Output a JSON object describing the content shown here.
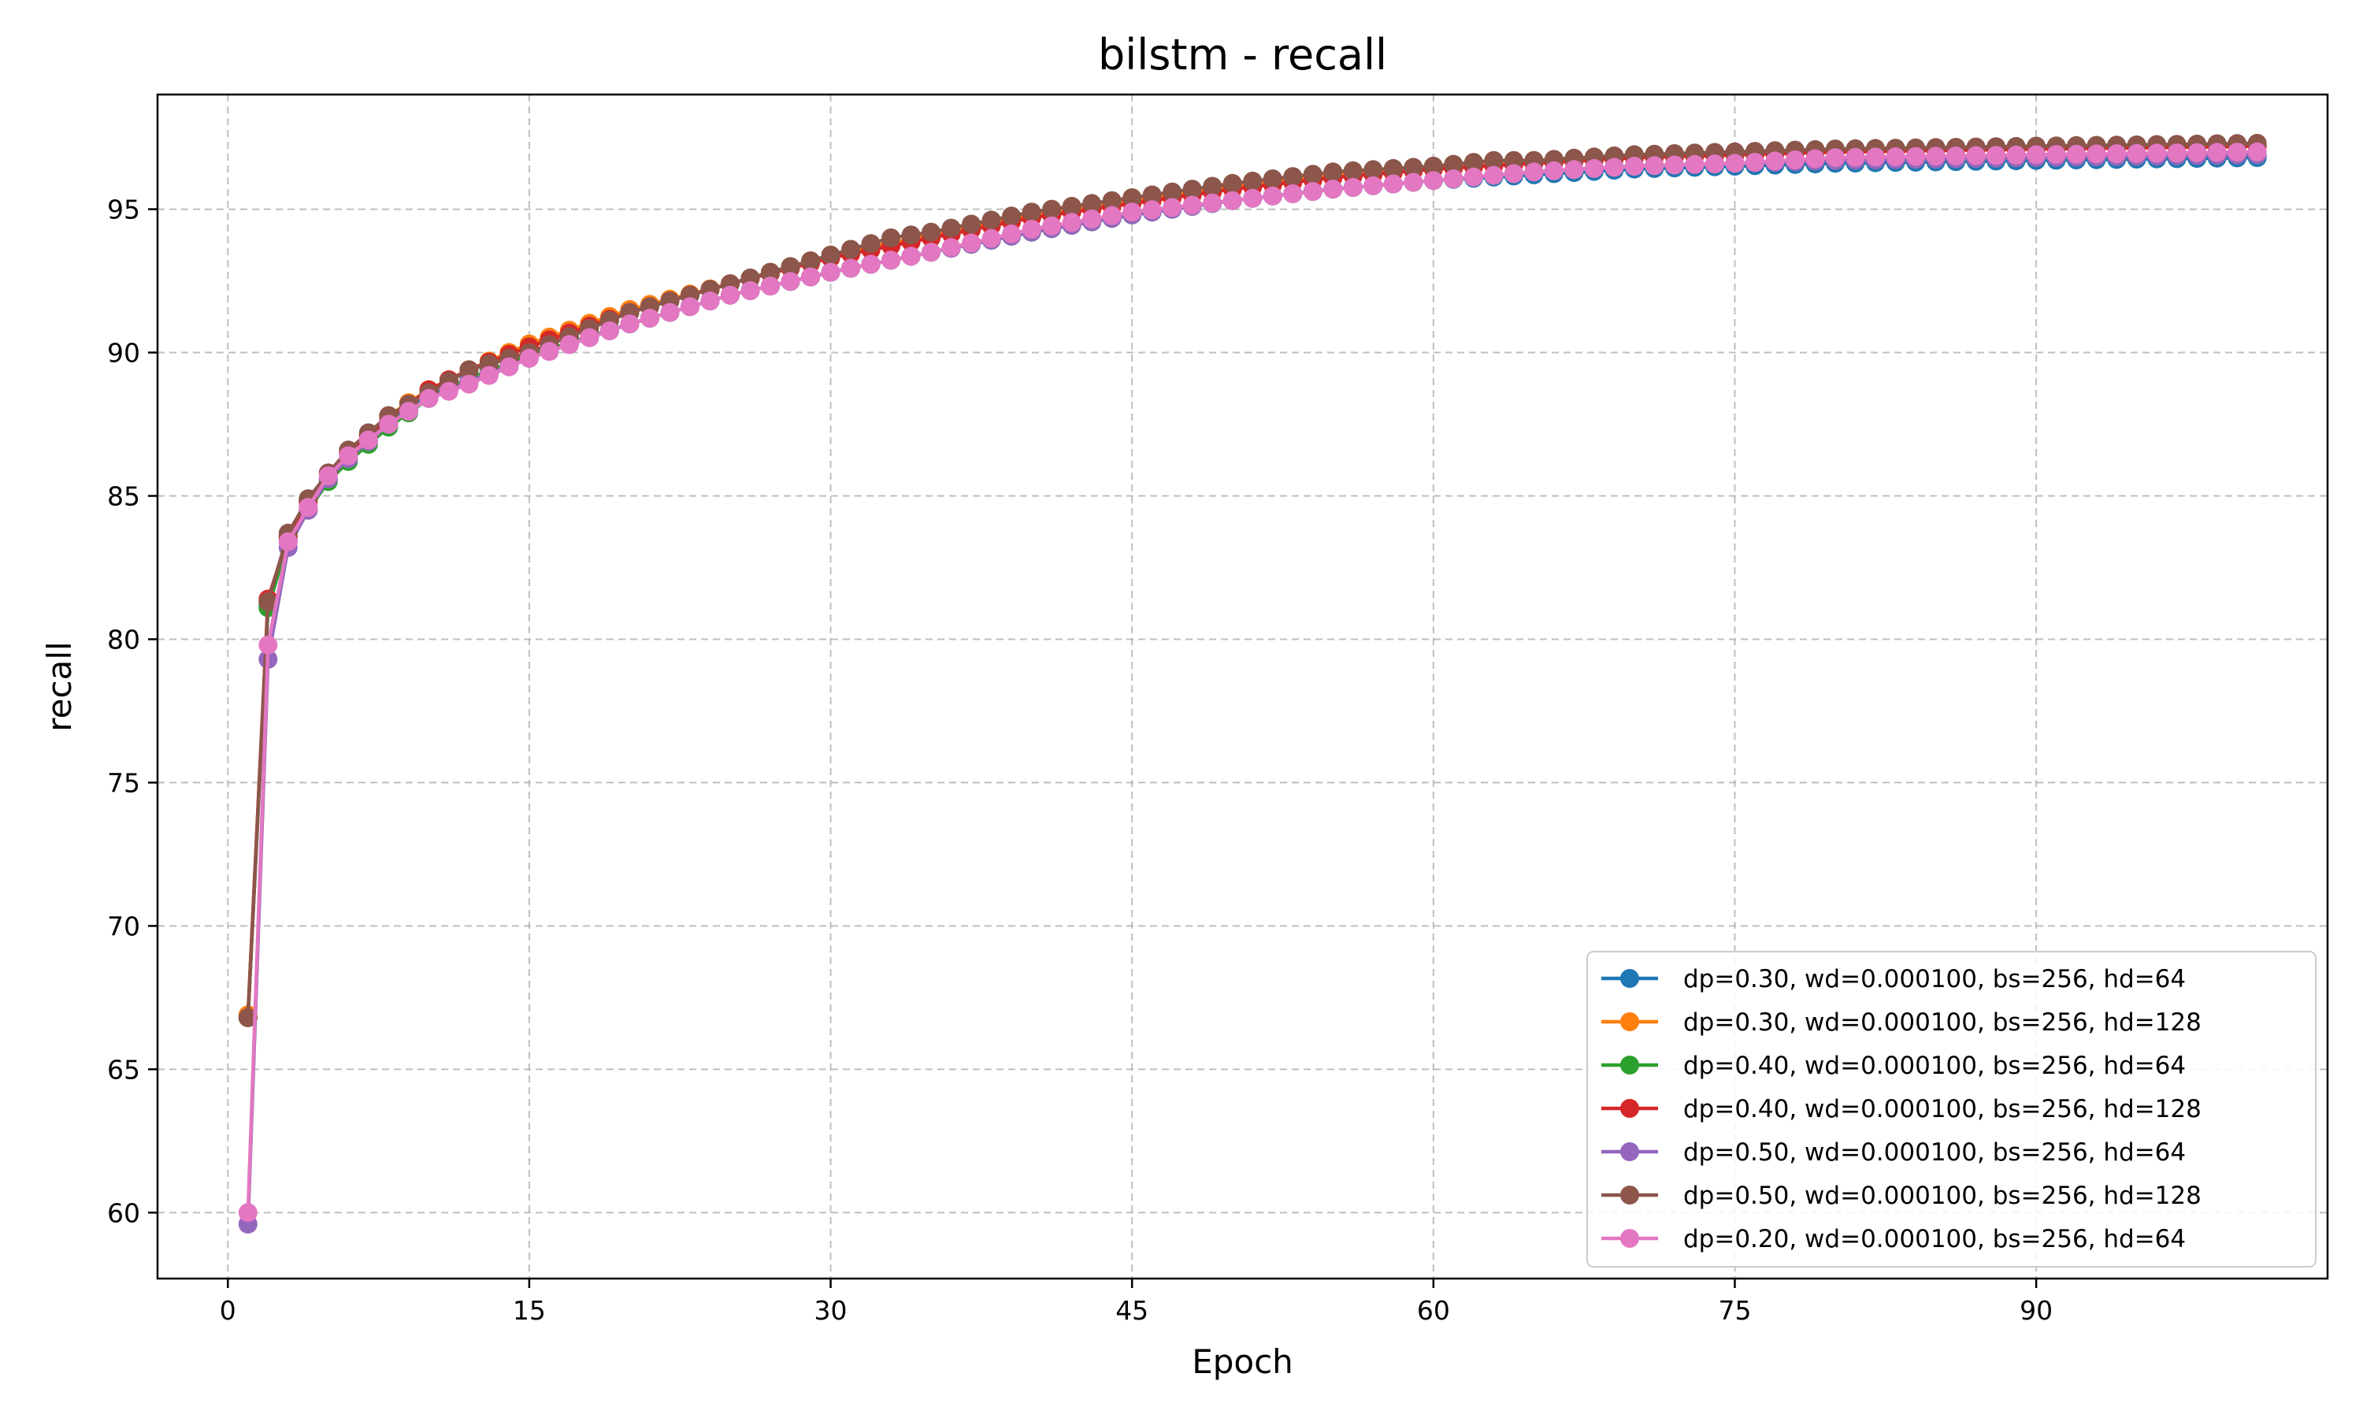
{
  "chart_data": {
    "type": "line",
    "title": "bilstm - recall",
    "xlabel": "Epoch",
    "ylabel": "recall",
    "xlim": [
      -3.5,
      104.5
    ],
    "ylim": [
      57.7,
      99.0
    ],
    "xticks": [
      0,
      15,
      30,
      45,
      60,
      75,
      90
    ],
    "yticks": [
      60,
      65,
      70,
      75,
      80,
      85,
      90,
      95
    ],
    "grid": true,
    "legend_position": "lower-right",
    "x_start": 1,
    "x_end": 101,
    "series": [
      {
        "name": "dp=0.30, wd=0.000100, bs=256, hd=64",
        "color": "#1f77b4",
        "anchors": [
          [
            1,
            66.8
          ],
          [
            2,
            81.2
          ],
          [
            3,
            83.5
          ],
          [
            4,
            84.6
          ],
          [
            5,
            85.6
          ],
          [
            6,
            86.3
          ],
          [
            8,
            87.6
          ],
          [
            10,
            88.5
          ],
          [
            12,
            89.1
          ],
          [
            15,
            89.9
          ],
          [
            20,
            91.0
          ],
          [
            25,
            92.0
          ],
          [
            30,
            92.8
          ],
          [
            35,
            93.5
          ],
          [
            40,
            94.2
          ],
          [
            45,
            94.8
          ],
          [
            50,
            95.3
          ],
          [
            55,
            95.7
          ],
          [
            60,
            96.0
          ],
          [
            65,
            96.2
          ],
          [
            70,
            96.4
          ],
          [
            75,
            96.5
          ],
          [
            80,
            96.6
          ],
          [
            90,
            96.7
          ],
          [
            101,
            96.8
          ]
        ]
      },
      {
        "name": "dp=0.30, wd=0.000100, bs=256, hd=128",
        "color": "#ff7f0e",
        "anchors": [
          [
            1,
            66.9
          ],
          [
            2,
            81.3
          ],
          [
            3,
            83.6
          ],
          [
            4,
            84.8
          ],
          [
            5,
            85.8
          ],
          [
            6,
            86.5
          ],
          [
            8,
            87.8
          ],
          [
            10,
            88.7
          ],
          [
            12,
            89.4
          ],
          [
            15,
            90.3
          ],
          [
            20,
            91.5
          ],
          [
            25,
            92.4
          ],
          [
            30,
            93.4
          ],
          [
            35,
            94.1
          ],
          [
            40,
            94.8
          ],
          [
            45,
            95.3
          ],
          [
            50,
            95.8
          ],
          [
            55,
            96.2
          ],
          [
            60,
            96.5
          ],
          [
            65,
            96.7
          ],
          [
            70,
            96.8
          ],
          [
            75,
            96.9
          ],
          [
            80,
            97.0
          ],
          [
            90,
            97.1
          ],
          [
            101,
            97.2
          ]
        ]
      },
      {
        "name": "dp=0.40, wd=0.000100, bs=256, hd=64",
        "color": "#2ca02c",
        "anchors": [
          [
            1,
            66.8
          ],
          [
            2,
            81.1
          ],
          [
            3,
            83.4
          ],
          [
            4,
            84.5
          ],
          [
            5,
            85.5
          ],
          [
            6,
            86.2
          ],
          [
            8,
            87.4
          ],
          [
            10,
            88.4
          ],
          [
            12,
            89.1
          ],
          [
            15,
            89.9
          ],
          [
            20,
            91.0
          ],
          [
            25,
            92.0
          ],
          [
            30,
            92.8
          ],
          [
            35,
            93.5
          ],
          [
            40,
            94.2
          ],
          [
            45,
            94.8
          ],
          [
            50,
            95.3
          ],
          [
            55,
            95.7
          ],
          [
            60,
            96.0
          ],
          [
            65,
            96.3
          ],
          [
            70,
            96.5
          ],
          [
            75,
            96.6
          ],
          [
            80,
            96.7
          ],
          [
            90,
            96.8
          ],
          [
            101,
            96.9
          ]
        ]
      },
      {
        "name": "dp=0.40, wd=0.000100, bs=256, hd=128",
        "color": "#d62728",
        "anchors": [
          [
            1,
            66.8
          ],
          [
            2,
            81.4
          ],
          [
            3,
            83.6
          ],
          [
            4,
            84.8
          ],
          [
            5,
            85.8
          ],
          [
            6,
            86.5
          ],
          [
            8,
            87.7
          ],
          [
            10,
            88.7
          ],
          [
            12,
            89.4
          ],
          [
            15,
            90.2
          ],
          [
            20,
            91.4
          ],
          [
            25,
            92.4
          ],
          [
            30,
            93.3
          ],
          [
            35,
            94.0
          ],
          [
            40,
            94.7
          ],
          [
            45,
            95.2
          ],
          [
            50,
            95.7
          ],
          [
            55,
            96.1
          ],
          [
            60,
            96.4
          ],
          [
            65,
            96.6
          ],
          [
            70,
            96.8
          ],
          [
            75,
            96.9
          ],
          [
            80,
            97.0
          ],
          [
            90,
            97.1
          ],
          [
            101,
            97.2
          ]
        ]
      },
      {
        "name": "dp=0.50, wd=0.000100, bs=256, hd=64",
        "color": "#9467bd",
        "anchors": [
          [
            1,
            59.6
          ],
          [
            2,
            79.3
          ],
          [
            3,
            83.2
          ],
          [
            4,
            84.5
          ],
          [
            5,
            85.6
          ],
          [
            6,
            86.3
          ],
          [
            8,
            87.5
          ],
          [
            10,
            88.4
          ],
          [
            12,
            89.0
          ],
          [
            15,
            89.8
          ],
          [
            20,
            91.0
          ],
          [
            25,
            92.0
          ],
          [
            30,
            92.8
          ],
          [
            35,
            93.5
          ],
          [
            40,
            94.2
          ],
          [
            45,
            94.8
          ],
          [
            50,
            95.3
          ],
          [
            55,
            95.7
          ],
          [
            60,
            96.0
          ],
          [
            65,
            96.3
          ],
          [
            70,
            96.5
          ],
          [
            75,
            96.6
          ],
          [
            80,
            96.7
          ],
          [
            90,
            96.8
          ],
          [
            101,
            96.9
          ]
        ]
      },
      {
        "name": "dp=0.50, wd=0.000100, bs=256, hd=128",
        "color": "#8c564b",
        "anchors": [
          [
            1,
            66.8
          ],
          [
            2,
            81.3
          ],
          [
            3,
            83.7
          ],
          [
            4,
            84.9
          ],
          [
            5,
            85.8
          ],
          [
            6,
            86.6
          ],
          [
            8,
            87.8
          ],
          [
            10,
            88.6
          ],
          [
            12,
            89.4
          ],
          [
            15,
            90.0
          ],
          [
            20,
            91.4
          ],
          [
            25,
            92.4
          ],
          [
            30,
            93.4
          ],
          [
            33,
            94.0
          ],
          [
            35,
            94.2
          ],
          [
            40,
            94.9
          ],
          [
            45,
            95.4
          ],
          [
            50,
            95.9
          ],
          [
            55,
            96.3
          ],
          [
            60,
            96.5
          ],
          [
            63,
            96.7
          ],
          [
            65,
            96.7
          ],
          [
            70,
            96.9
          ],
          [
            75,
            97.0
          ],
          [
            80,
            97.1
          ],
          [
            90,
            97.2
          ],
          [
            101,
            97.3
          ]
        ]
      },
      {
        "name": "dp=0.20, wd=0.000100, bs=256, hd=64",
        "color": "#e377c2",
        "anchors": [
          [
            1,
            60.0
          ],
          [
            2,
            79.8
          ],
          [
            3,
            83.4
          ],
          [
            4,
            84.6
          ],
          [
            5,
            85.7
          ],
          [
            6,
            86.4
          ],
          [
            8,
            87.5
          ],
          [
            10,
            88.4
          ],
          [
            12,
            88.9
          ],
          [
            15,
            89.8
          ],
          [
            20,
            91.0
          ],
          [
            25,
            92.0
          ],
          [
            30,
            92.8
          ],
          [
            35,
            93.5
          ],
          [
            40,
            94.3
          ],
          [
            45,
            94.9
          ],
          [
            50,
            95.3
          ],
          [
            55,
            95.7
          ],
          [
            60,
            96.0
          ],
          [
            65,
            96.3
          ],
          [
            70,
            96.5
          ],
          [
            75,
            96.6
          ],
          [
            80,
            96.8
          ],
          [
            90,
            96.9
          ],
          [
            101,
            97.0
          ]
        ]
      }
    ]
  }
}
